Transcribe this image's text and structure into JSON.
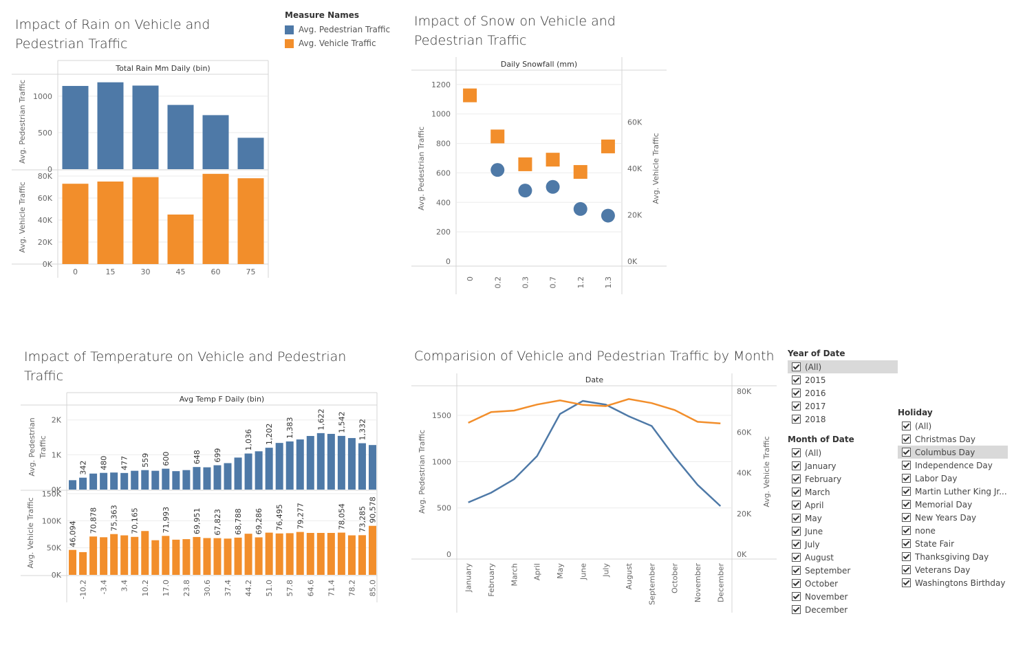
{
  "colors": {
    "pedestrian": "#4e79a7",
    "vehicle": "#f28e2b",
    "grid": "#ebebeb",
    "axis": "#d4d4d4",
    "text": "#666666"
  },
  "titles": {
    "rain": [
      "Impact of Rain on Vehicle and",
      "Pedestrian Traffic"
    ],
    "snow": [
      "Impact of Snow on Vehicle and",
      "Pedestrian Traffic"
    ],
    "temp": [
      "Impact of Temperature on Vehicle and Pedestrian",
      "Traffic"
    ],
    "month": [
      "Comparision of Vehicle and Pedestrian Traffic by Month"
    ]
  },
  "legend": {
    "title": "Measure Names",
    "items": [
      {
        "label": "Avg. Pedestrian Traffic",
        "color": "#4e79a7"
      },
      {
        "label": "Avg. Vehicle Traffic",
        "color": "#f28e2b"
      }
    ]
  },
  "chart_data": [
    {
      "id": "rain",
      "type": "bar",
      "header": "Total Rain Mm Daily (bin)",
      "categories": [
        "0",
        "15",
        "30",
        "45",
        "60",
        "75"
      ],
      "series": [
        {
          "name": "Avg. Pedestrian Traffic",
          "values": [
            1140,
            1190,
            1145,
            880,
            740,
            430
          ],
          "ylim": [
            0,
            1300
          ],
          "ticks": [
            0,
            500,
            1000
          ],
          "tick_labels": [
            "0",
            "500",
            "1000"
          ],
          "ylabel": "Avg. Pedestrian Traffic"
        },
        {
          "name": "Avg. Vehicle Traffic",
          "values": [
            73000,
            75000,
            79000,
            45000,
            82000,
            78000
          ],
          "ylim": [
            0,
            85000
          ],
          "ticks": [
            0,
            20000,
            40000,
            60000,
            80000
          ],
          "tick_labels": [
            "0K",
            "20K",
            "40K",
            "60K",
            "80K"
          ],
          "ylabel": "Avg. Vehicle Traffic"
        }
      ]
    },
    {
      "id": "snow",
      "type": "scatter",
      "header": "Daily Snowfall (mm)",
      "categories": [
        "0",
        "0.2",
        "0.3",
        "0.7",
        "1.2",
        "1.3"
      ],
      "left_axis": {
        "ylabel": "Avg. Pedestrian Traffic",
        "ylim": [
          0,
          1260
        ],
        "ticks": [
          0,
          200,
          400,
          600,
          800,
          1000,
          1200
        ],
        "tick_labels": [
          "0",
          "200",
          "400",
          "600",
          "800",
          "1000",
          "1200"
        ]
      },
      "right_axis": {
        "ylabel": "Avg. Vehicle Traffic",
        "ylim": [
          0,
          80000
        ],
        "ticks": [
          0,
          20000,
          40000,
          60000
        ],
        "tick_labels": [
          "0K",
          "20K",
          "40K",
          "60K"
        ]
      },
      "series": [
        {
          "name": "Avg. Pedestrian Traffic",
          "values": [
            null,
            620,
            480,
            505,
            355,
            310
          ]
        },
        {
          "name": "Avg. Vehicle Traffic",
          "values": [
            71500,
            53800,
            41800,
            43800,
            38500,
            49500
          ]
        }
      ]
    },
    {
      "id": "temp",
      "type": "bar",
      "header": "Avg Temp F Daily (bin)",
      "x_tick_labels": [
        "-10.2",
        "-3.4",
        "3.4",
        "10.2",
        "17.0",
        "23.8",
        "30.6",
        "37.4",
        "44.2",
        "51.0",
        "57.8",
        "64.6",
        "71.4",
        "78.2",
        "85.0"
      ],
      "series": [
        {
          "name": "Avg. Pedestrian Traffic",
          "ylabel": "Avg. Pedestrian Traffic",
          "ylim": [
            0,
            2350
          ],
          "ticks": [
            0,
            1000,
            2000
          ],
          "tick_labels": [
            "0K",
            "1K",
            "2K"
          ],
          "values": [
            270,
            342,
            460,
            480,
            490,
            477,
            540,
            559,
            540,
            600,
            530,
            560,
            648,
            640,
            699,
            760,
            920,
            1036,
            1100,
            1202,
            1340,
            1383,
            1440,
            1540,
            1622,
            1600,
            1542,
            1480,
            1332,
            1280
          ],
          "labels": [
            "",
            "342",
            "",
            "480",
            "",
            "477",
            "",
            "559",
            "",
            "600",
            "",
            "",
            "648",
            "",
            "699",
            "",
            "",
            "1,036",
            "",
            "1,202",
            "",
            "1,383",
            "",
            "",
            "1,622",
            "",
            "1,542",
            "",
            "1,332",
            ""
          ]
        },
        {
          "name": "Avg. Vehicle Traffic",
          "ylabel": "Avg. Vehicle Traffic",
          "ylim": [
            0,
            155000
          ],
          "ticks": [
            0,
            50000,
            100000,
            150000
          ],
          "tick_labels": [
            "0K",
            "50K",
            "100K",
            "150K"
          ],
          "values": [
            46094,
            42000,
            70878,
            69500,
            75363,
            73000,
            70165,
            81000,
            64000,
            71993,
            65000,
            66000,
            69951,
            68000,
            67823,
            67000,
            68788,
            76000,
            69286,
            78000,
            76495,
            77000,
            79277,
            77500,
            77500,
            77500,
            78054,
            73000,
            73285,
            90578
          ],
          "labels": [
            "46,094",
            "",
            "70,878",
            "",
            "75,363",
            "",
            "70,165",
            "",
            "",
            "71,993",
            "",
            "",
            "69,951",
            "",
            "67,823",
            "",
            "68,788",
            "",
            "69,286",
            "",
            "76,495",
            "",
            "79,277",
            "",
            "",
            "",
            "78,054",
            "",
            "73,285",
            "90,578"
          ]
        }
      ]
    },
    {
      "id": "month",
      "type": "line",
      "header": "Date",
      "categories": [
        "January",
        "February",
        "March",
        "April",
        "May",
        "June",
        "July",
        "August",
        "September",
        "October",
        "November",
        "December"
      ],
      "left_axis": {
        "ylabel": "Avg. Pedestrian Traffic",
        "ylim": [
          0,
          1760
        ],
        "ticks": [
          0,
          500,
          1000,
          1500
        ],
        "tick_labels": [
          "0",
          "500",
          "1000",
          "1500"
        ]
      },
      "right_axis": {
        "ylabel": "Avg. Vehicle Traffic",
        "ylim": [
          0,
          80000
        ],
        "ticks": [
          0,
          20000,
          40000,
          60000,
          80000
        ],
        "tick_labels": [
          "0K",
          "20K",
          "40K",
          "60K",
          "80K"
        ]
      },
      "series": [
        {
          "name": "Avg. Pedestrian Traffic",
          "axis": "left",
          "values": [
            560,
            665,
            810,
            1060,
            1515,
            1655,
            1615,
            1490,
            1385,
            1050,
            750,
            520
          ]
        },
        {
          "name": "Avg. Vehicle Traffic",
          "axis": "right",
          "values": [
            64500,
            69800,
            70500,
            73500,
            75500,
            73300,
            72700,
            76200,
            74200,
            70800,
            65000,
            64200
          ]
        }
      ]
    }
  ],
  "filters": {
    "year": {
      "title": "Year of Date",
      "items": [
        "(All)",
        "2015",
        "2016",
        "2017",
        "2018"
      ],
      "highlight": 0
    },
    "month": {
      "title": "Month of Date",
      "items": [
        "(All)",
        "January",
        "February",
        "March",
        "April",
        "May",
        "June",
        "July",
        "August",
        "September",
        "October",
        "November",
        "December"
      ]
    },
    "holiday": {
      "title": "Holiday",
      "items": [
        "(All)",
        "Christmas Day",
        "Columbus Day",
        "Independence Day",
        "Labor Day",
        "Martin Luther King Jr...",
        "Memorial Day",
        "New Years Day",
        "none",
        "State Fair",
        "Thanksgiving Day",
        "Veterans Day",
        "Washingtons Birthday"
      ],
      "highlight": 2
    }
  }
}
